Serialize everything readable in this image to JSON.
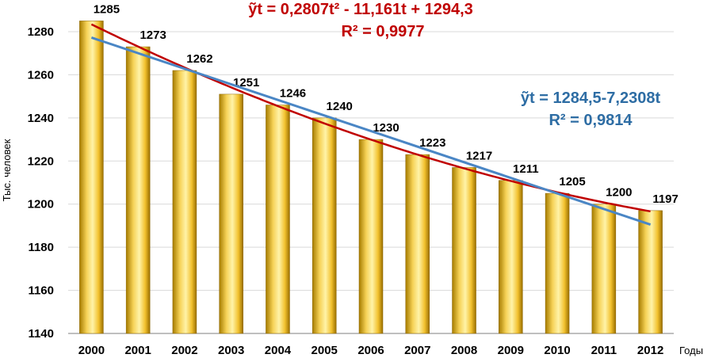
{
  "chart_data": {
    "type": "bar",
    "categories": [
      "2000",
      "2001",
      "2002",
      "2003",
      "2004",
      "2005",
      "2006",
      "2007",
      "2008",
      "2009",
      "2010",
      "2011",
      "2012"
    ],
    "values": [
      1285,
      1273,
      1262,
      1251,
      1246,
      1240,
      1230,
      1223,
      1217,
      1211,
      1205,
      1200,
      1197
    ],
    "ylabel": "Тыс. человек",
    "xlabel": "Годы",
    "ylim": [
      1140,
      1280
    ],
    "yticks": [
      1140,
      1160,
      1180,
      1200,
      1220,
      1240,
      1260,
      1280
    ],
    "grid": true,
    "bar_color": "#f2c12e",
    "trendlines": [
      {
        "type": "polynomial",
        "equation": "ỹt = 0,2807t² - 11,161t + 1294,3",
        "r2": "R² = 0,9977",
        "color": "#c00000"
      },
      {
        "type": "linear",
        "equation": "ỹt = 1284,5-7,2308t",
        "r2": "R² = 0,9814",
        "color": "#2e6da4"
      }
    ]
  }
}
